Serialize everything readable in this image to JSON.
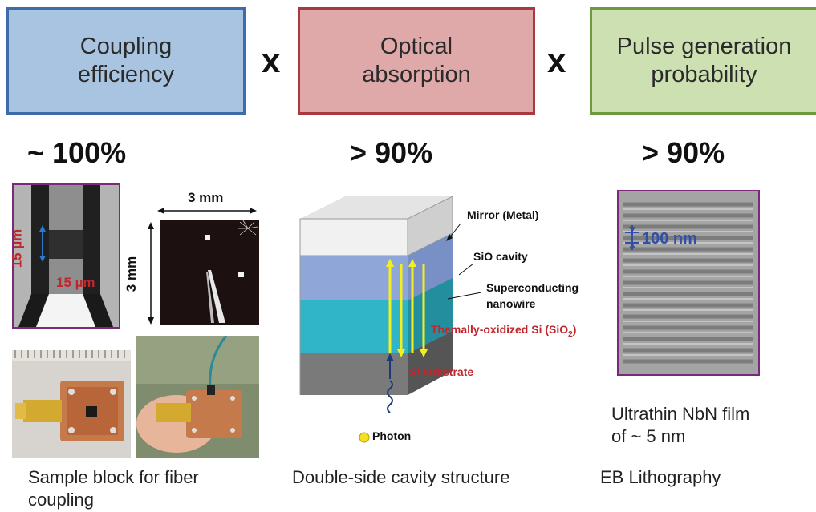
{
  "boxes": [
    {
      "line1": "Coupling",
      "line2": "efficiency",
      "fill": "#a9c4e0",
      "border": "#3d6ca8"
    },
    {
      "line1": "Optical",
      "line2": "absorption",
      "fill": "#dfa9aa",
      "border": "#a83a3f"
    },
    {
      "line1": "Pulse generation",
      "line2": "probability",
      "fill": "#cde0b2",
      "border": "#6e9a3e"
    }
  ],
  "operators": [
    "x",
    "x"
  ],
  "values": [
    "~ 100%",
    "> 90%",
    "> 90%"
  ],
  "photos": {
    "detector_h_dim": "15 µm",
    "detector_v_dim": "15 µm",
    "chip_w_dim": "3 mm",
    "chip_h_dim": "3 mm"
  },
  "cavity": {
    "mirror": "Mirror (Metal)",
    "sio_cavity": "SiO cavity",
    "nanowire_line1": "Superconducting",
    "nanowire_line2": "nanowire",
    "oxide": "Themally-oxidized Si (SiO",
    "oxide_sub": "2",
    "oxide_end": ")",
    "substrate": "Si substrate",
    "photon": "Photon"
  },
  "sem": {
    "scale": "100 nm"
  },
  "captions": {
    "sample_block_line1": "Sample block for fiber",
    "sample_block_line2": "coupling",
    "cavity": "Double-side cavity structure",
    "film_line1": "Ultrathin NbN film",
    "film_line2": "of ~ 5 nm",
    "litho": "EB Lithography"
  },
  "colors": {
    "yellow": "#f4f020",
    "red_label": "#c0272d",
    "blue_label": "#2f4fa8"
  }
}
